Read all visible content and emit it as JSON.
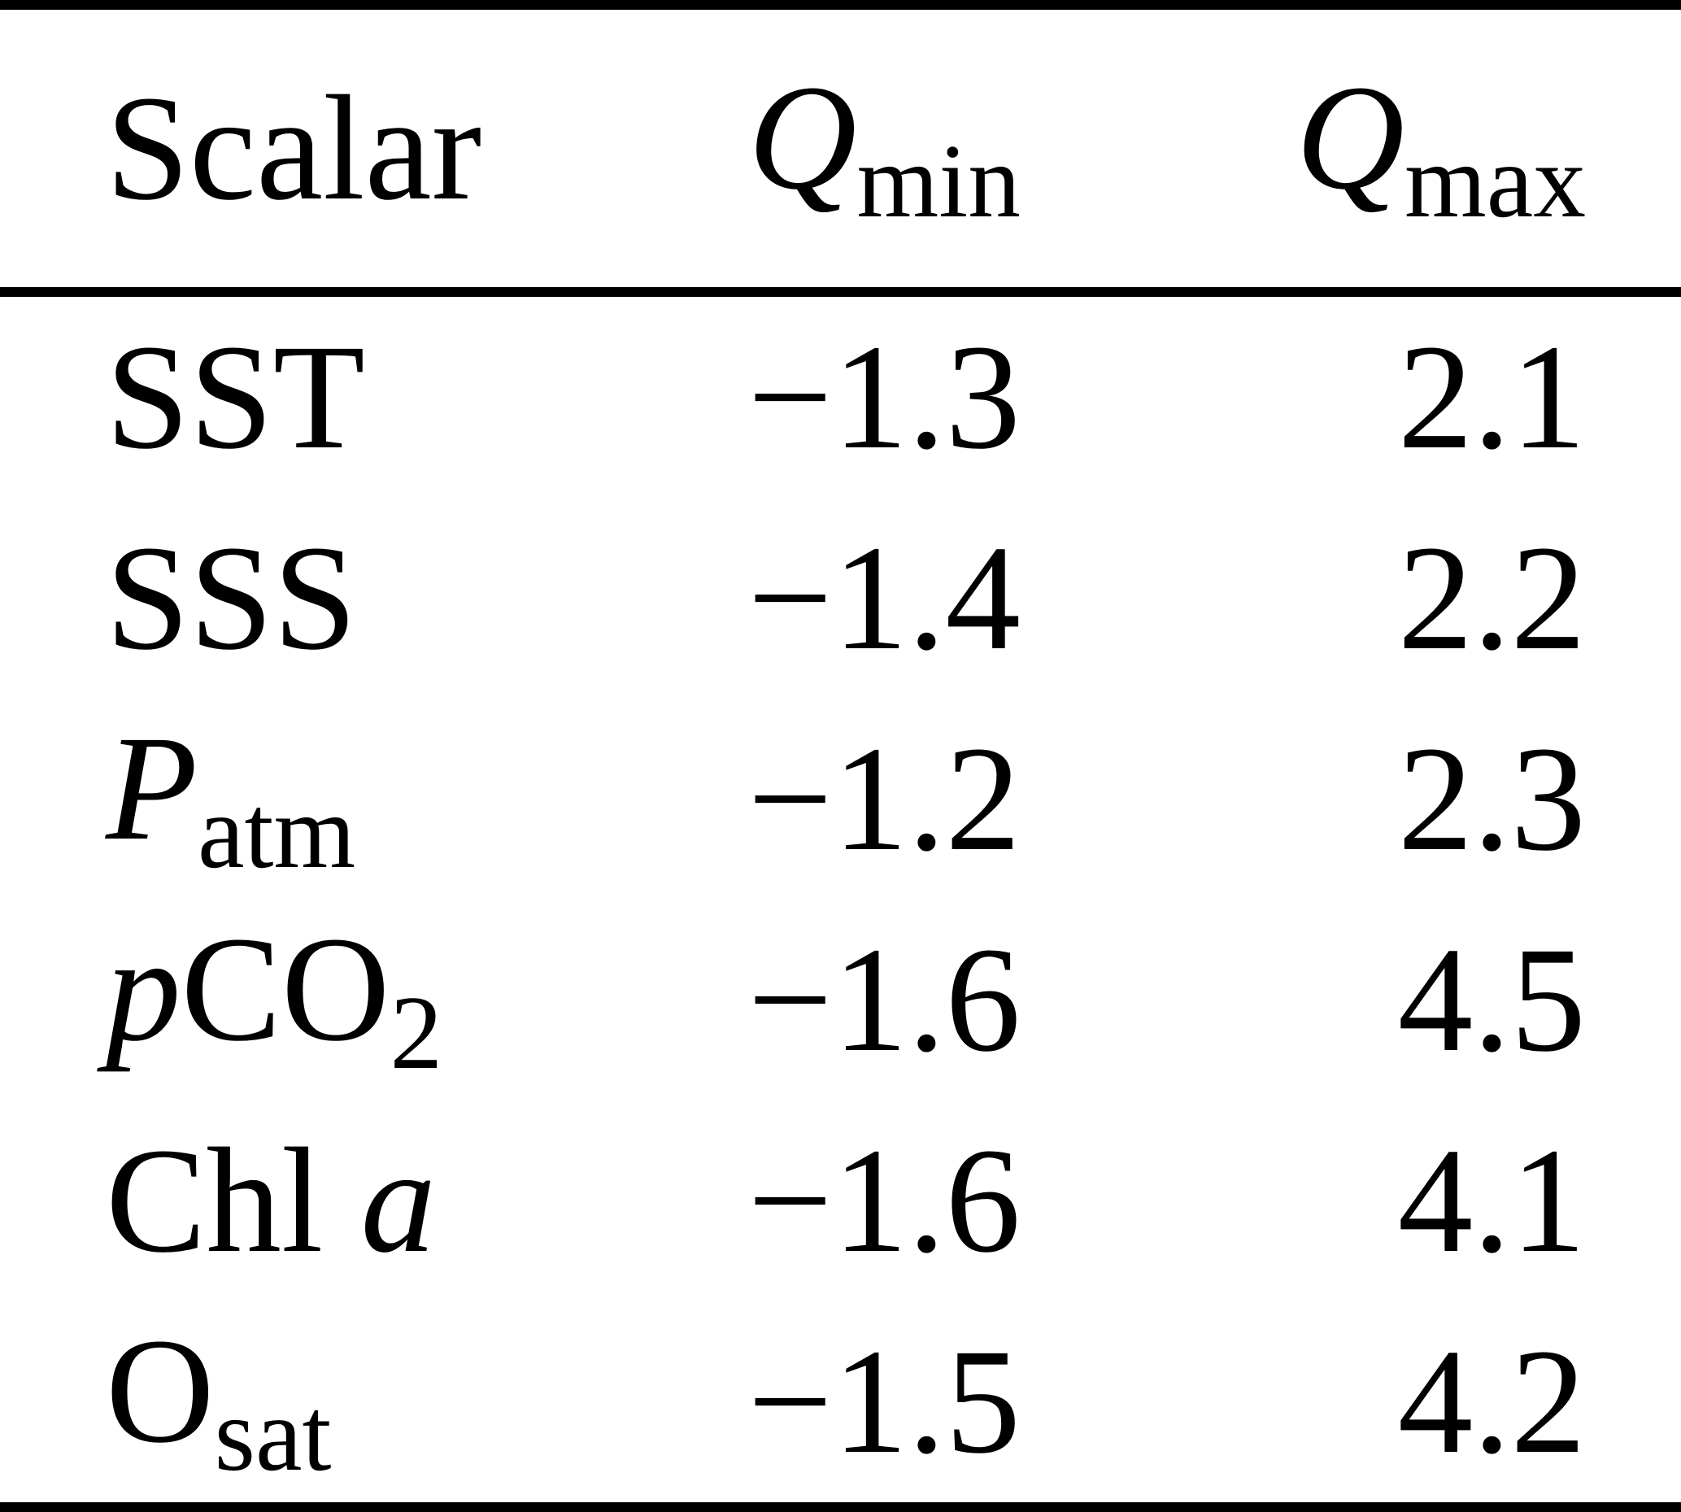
{
  "colors": {
    "background": "#ffffff",
    "text": "#000000",
    "rule": "#000000"
  },
  "table": {
    "columns": [
      {
        "key": "scalar",
        "parts": [
          {
            "t": "Scalar",
            "k": "n"
          }
        ]
      },
      {
        "key": "qmin",
        "parts": [
          {
            "t": "Q",
            "k": "i"
          },
          {
            "t": "min",
            "k": "s"
          }
        ]
      },
      {
        "key": "qmax",
        "parts": [
          {
            "t": "Q",
            "k": "i"
          },
          {
            "t": "max",
            "k": "s"
          }
        ]
      }
    ],
    "rows": [
      {
        "scalar": [
          {
            "t": "SST",
            "k": "n"
          }
        ],
        "qmin": "−1.3",
        "qmax": "2.1"
      },
      {
        "scalar": [
          {
            "t": "SSS",
            "k": "n"
          }
        ],
        "qmin": "−1.4",
        "qmax": "2.2"
      },
      {
        "scalar": [
          {
            "t": "P",
            "k": "i"
          },
          {
            "t": "atm",
            "k": "s"
          }
        ],
        "qmin": "−1.2",
        "qmax": "2.3"
      },
      {
        "scalar": [
          {
            "t": "p",
            "k": "i"
          },
          {
            "t": "CO",
            "k": "n"
          },
          {
            "t": "2",
            "k": "s"
          }
        ],
        "qmin": "−1.6",
        "qmax": "4.5"
      },
      {
        "scalar": [
          {
            "t": "Chl ",
            "k": "n"
          },
          {
            "t": "a",
            "k": "i"
          }
        ],
        "qmin": "−1.6",
        "qmax": "4.1"
      },
      {
        "scalar": [
          {
            "t": "O",
            "k": "n"
          },
          {
            "t": "sat",
            "k": "s"
          }
        ],
        "qmin": "−1.5",
        "qmax": "4.2"
      }
    ]
  },
  "chart_data": {
    "type": "table",
    "columns": [
      "Scalar",
      "Q_min",
      "Q_max"
    ],
    "rows": [
      [
        "SST",
        -1.3,
        2.1
      ],
      [
        "SSS",
        -1.4,
        2.2
      ],
      [
        "P_atm",
        -1.2,
        2.3
      ],
      [
        "pCO2",
        -1.6,
        4.5
      ],
      [
        "Chl a",
        -1.6,
        4.1
      ],
      [
        "O_sat",
        -1.5,
        4.2
      ]
    ]
  }
}
